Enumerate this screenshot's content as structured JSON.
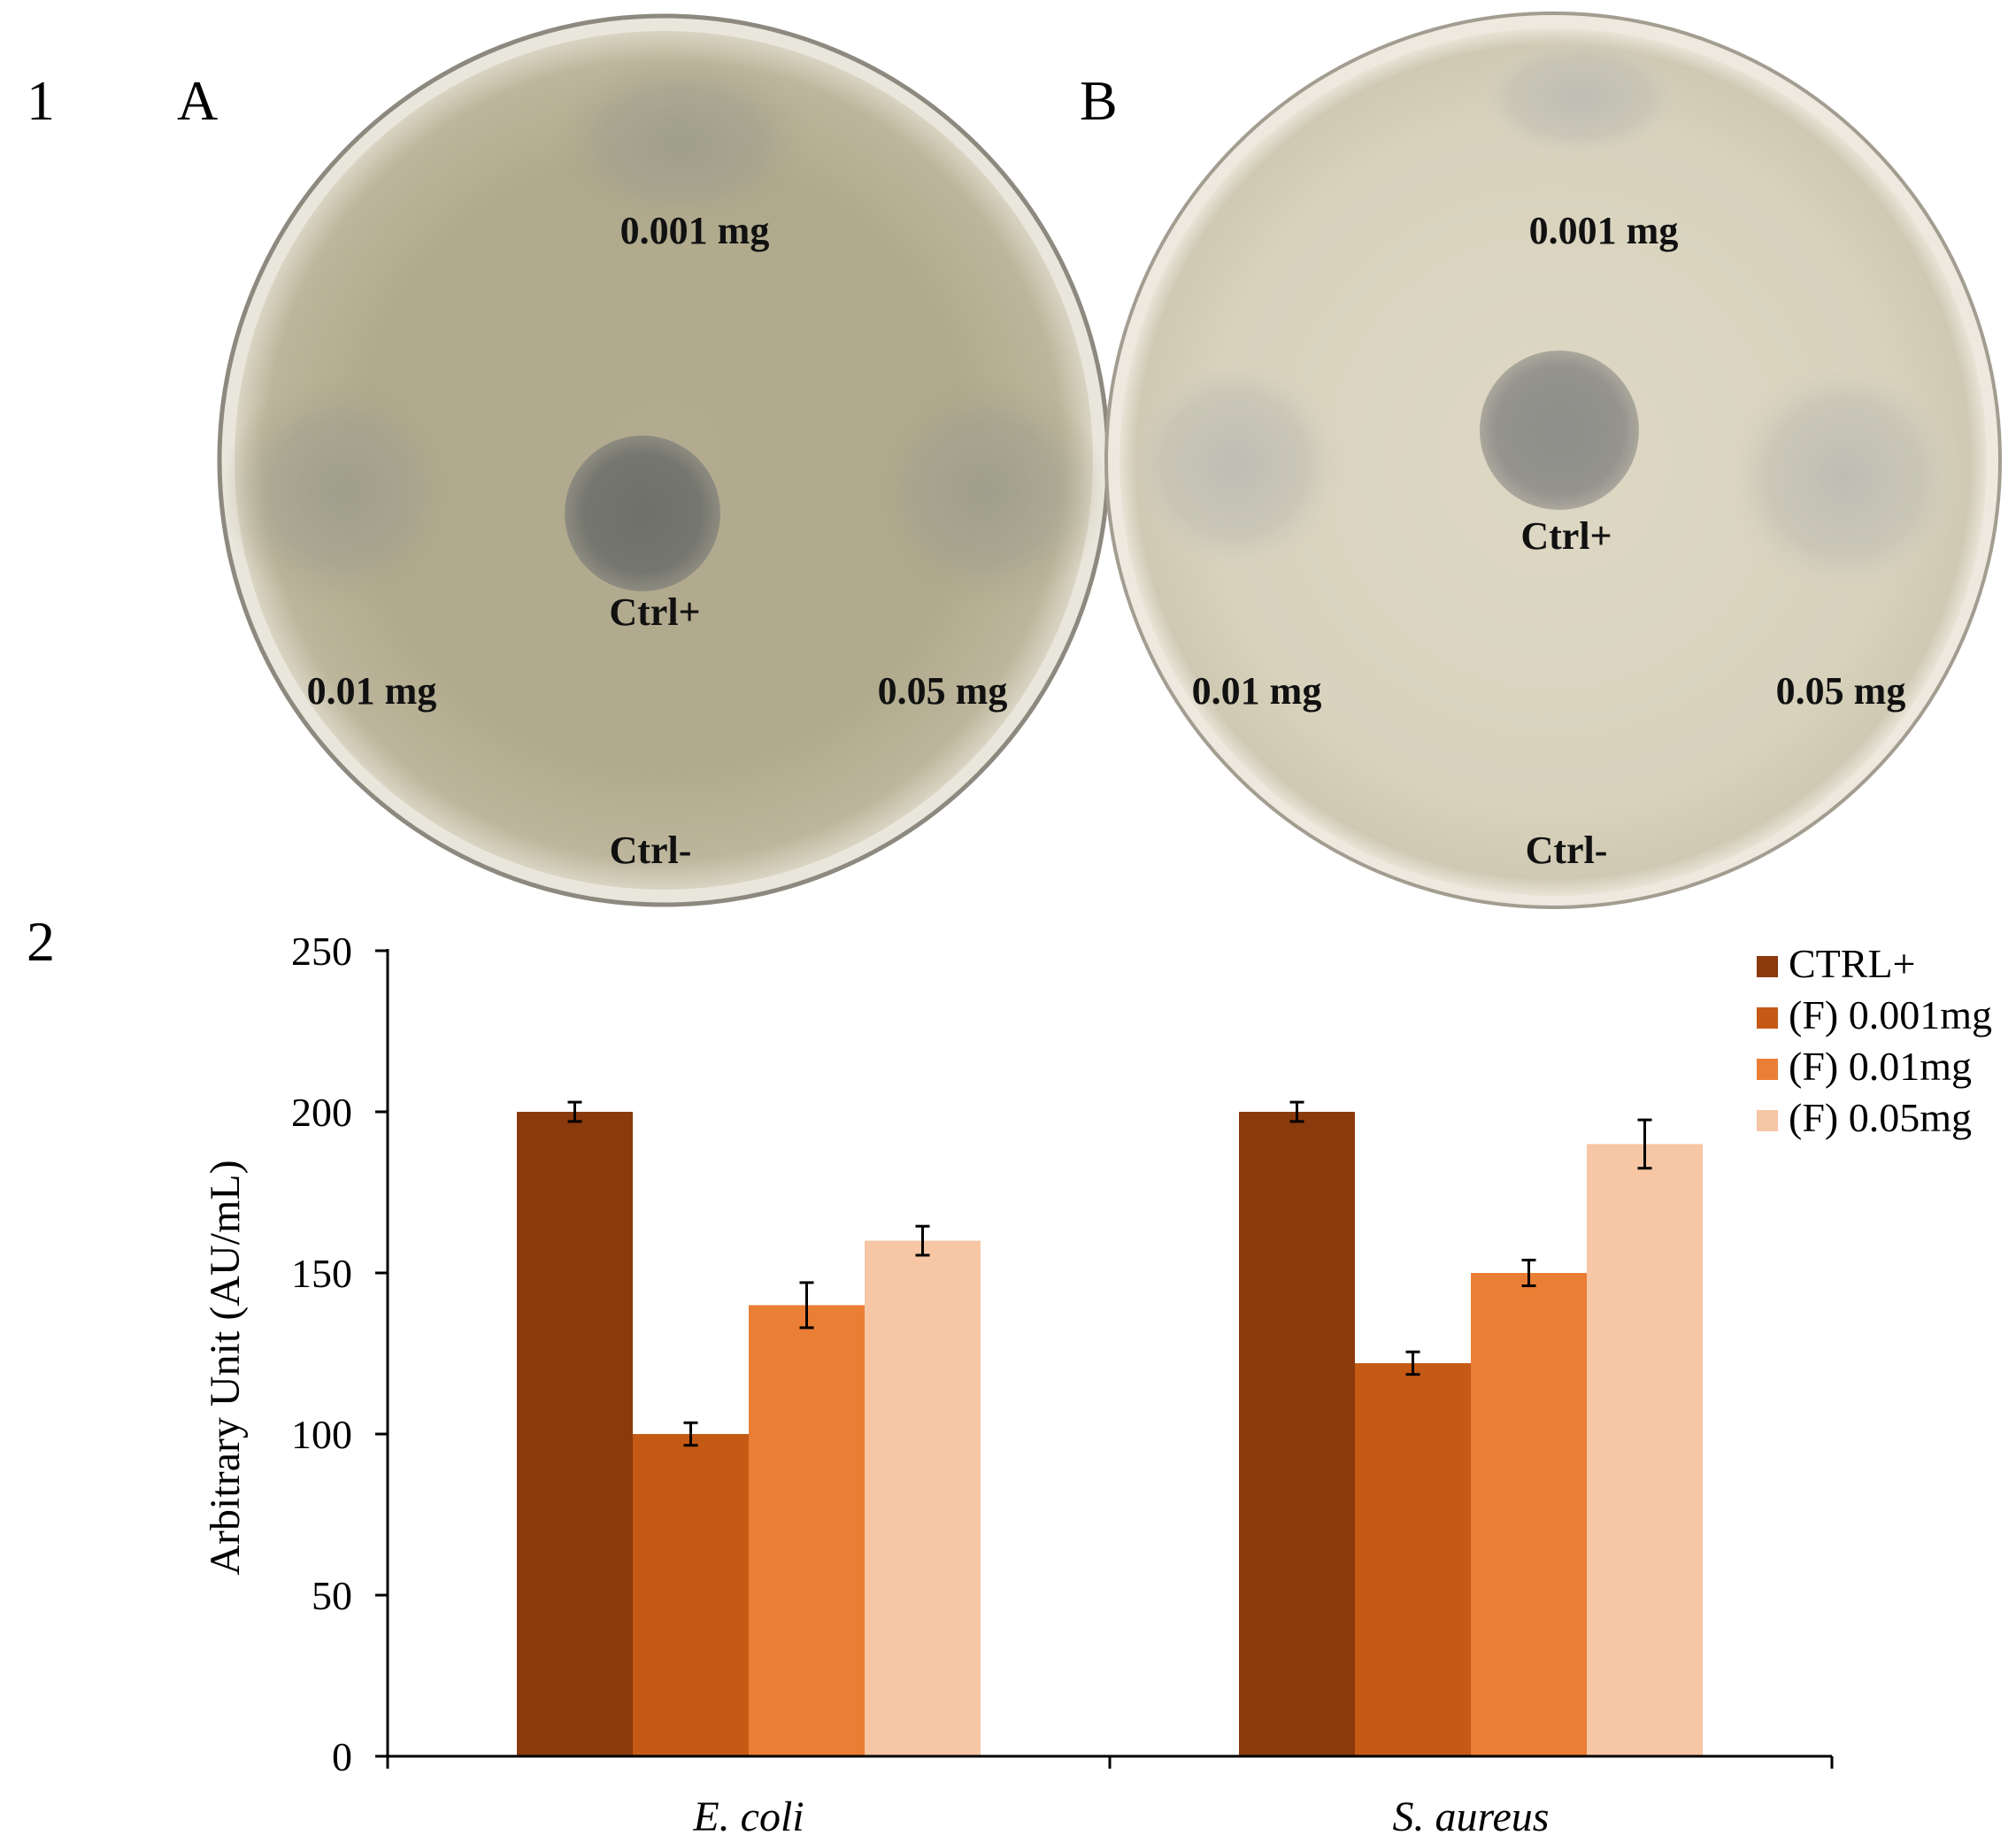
{
  "panels": {
    "top_number": "1",
    "bottom_number": "2"
  },
  "plates": [
    {
      "letter": "A",
      "labels": {
        "top": "0.001 mg",
        "left": "0.01 mg",
        "right": "0.05 mg",
        "center": "Ctrl+",
        "bottom": "Ctrl-"
      }
    },
    {
      "letter": "B",
      "labels": {
        "top": "0.001 mg",
        "left": "0.01 mg",
        "right": "0.05 mg",
        "center": "Ctrl+",
        "bottom": "Ctrl-"
      }
    }
  ],
  "chart_data": {
    "type": "bar",
    "title": "",
    "xlabel": "",
    "ylabel": "Arbitrary Unit (AU/mL)",
    "ylim": [
      0,
      250
    ],
    "yticks": [
      0,
      50,
      100,
      150,
      200,
      250
    ],
    "categories": [
      "E. coli",
      "S. aureus"
    ],
    "series": [
      {
        "name": "CTRL+",
        "color": "#8B3A0E",
        "values": [
          200,
          200
        ],
        "errors": [
          3,
          3
        ]
      },
      {
        "name": "(F) 0.001mg",
        "color": "#C55A15",
        "values": [
          100,
          122
        ],
        "errors": [
          3.5,
          3.5
        ]
      },
      {
        "name": "(F) 0.01mg",
        "color": "#EB7E35",
        "values": [
          140,
          150
        ],
        "errors": [
          7,
          4
        ]
      },
      {
        "name": "(F) 0.05mg",
        "color": "#F6C6A5",
        "values": [
          160,
          190
        ],
        "errors": [
          4.5,
          7.5
        ]
      }
    ],
    "grid": false,
    "legend_position": "top-right"
  }
}
